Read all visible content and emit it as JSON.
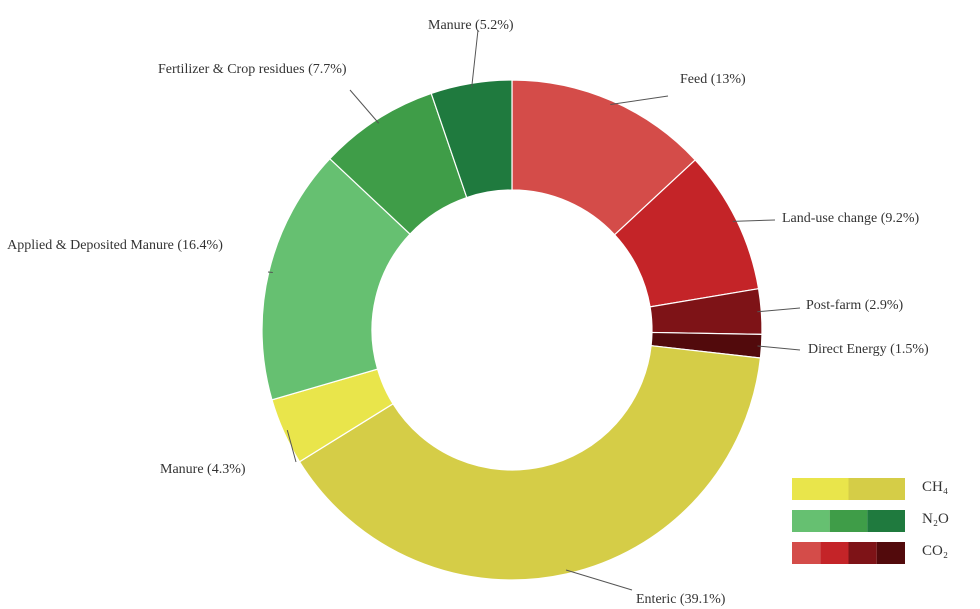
{
  "chart_data": {
    "type": "donut",
    "labels": [
      "Feed (13%)",
      "Land-use change (9.2%)",
      "Post-farm (2.9%)",
      "Direct Energy (1.5%)",
      "Enteric (39.1%)",
      "Manure (4.3%)",
      "Applied & Deposited Manure (16.4%)",
      "Fertilizer & Crop residues (7.7%)",
      "Manure (5.2%)"
    ],
    "values": [
      13,
      9.2,
      2.9,
      1.5,
      39.1,
      4.3,
      16.4,
      7.7,
      5.2
    ],
    "colors": [
      "#d44c49",
      "#c42428",
      "#7e1317",
      "#520a0c",
      "#d5cd47",
      "#e9e54b",
      "#66c071",
      "#3f9d48",
      "#1f7a3e"
    ],
    "legend": [
      {
        "name": "CH₄",
        "colors": [
          "#e9e54b",
          "#d5cd47"
        ]
      },
      {
        "name": "N₂O",
        "colors": [
          "#66c071",
          "#3f9d48",
          "#1f7a3e"
        ]
      },
      {
        "name": "CO₂",
        "colors": [
          "#d44c49",
          "#c42428",
          "#7e1317",
          "#520a0c"
        ]
      }
    ]
  }
}
